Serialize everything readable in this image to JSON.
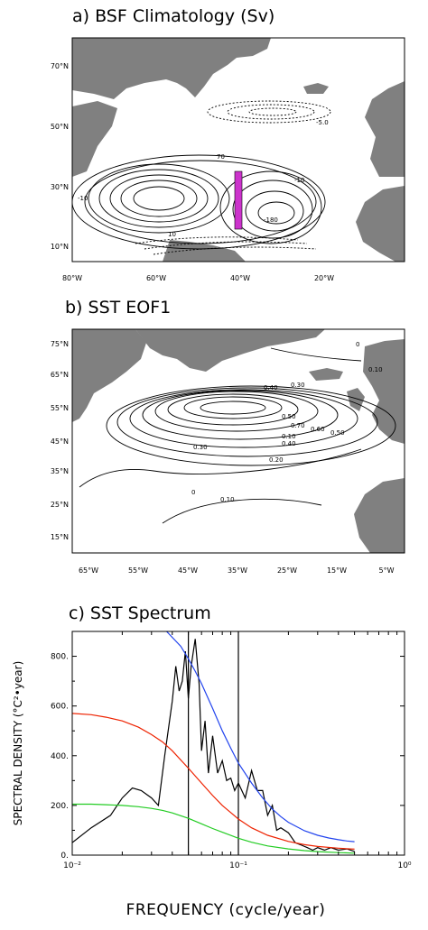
{
  "chart_data": [
    {
      "type": "contour-map",
      "title": "a) BSF Climatology (Sv)",
      "x_ticks": [
        "80°W",
        "60°W",
        "40°W",
        "20°W"
      ],
      "y_ticks": [
        "70°N",
        "50°N",
        "30°N",
        "10°N"
      ],
      "contour_labels": [
        "-5.0",
        "70",
        "-10",
        "-10",
        "10",
        "-180"
      ],
      "highlight_color": "#cc33cc"
    },
    {
      "type": "contour-map",
      "title": "b) SST EOF1",
      "x_ticks": [
        "65°W",
        "55°W",
        "45°W",
        "35°W",
        "25°W",
        "15°W",
        "5°W"
      ],
      "y_ticks": [
        "75°N",
        "65°N",
        "55°N",
        "45°N",
        "35°N",
        "25°N",
        "15°N"
      ],
      "contour_labels": [
        "0.10",
        "0.40",
        "0.30",
        "0.50",
        "0.70",
        "0.60",
        "0.50",
        "0.40",
        "0.30",
        "0.20",
        "0.10",
        "0",
        "0.10",
        "0"
      ]
    },
    {
      "type": "line",
      "title": "c) SST Spectrum",
      "xlabel": "FREQUENCY (cycle/year)",
      "ylabel": "SPECTRAL DENSITY (°C²•year)",
      "x_scale": "log",
      "xlim": [
        0.01,
        1
      ],
      "ylim": [
        0,
        900
      ],
      "x_ticks": [
        "10⁻²",
        "10⁻¹",
        "10⁰"
      ],
      "y_ticks": [
        "0.",
        "200.",
        "400.",
        "600.",
        "800."
      ],
      "vlines": [
        0.05,
        0.1
      ],
      "series": [
        {
          "color": "#000000",
          "x": [
            0.01,
            0.013,
            0.017,
            0.02,
            0.023,
            0.026,
            0.03,
            0.033,
            0.036,
            0.04,
            0.042,
            0.044,
            0.046,
            0.048,
            0.05,
            0.052,
            0.055,
            0.058,
            0.06,
            0.063,
            0.066,
            0.07,
            0.075,
            0.08,
            0.085,
            0.09,
            0.095,
            0.1,
            0.11,
            0.12,
            0.13,
            0.14,
            0.15,
            0.16,
            0.17,
            0.18,
            0.2,
            0.22,
            0.24,
            0.26,
            0.28,
            0.3,
            0.33,
            0.36,
            0.4,
            0.45,
            0.5
          ],
          "y": [
            50,
            110,
            160,
            230,
            270,
            260,
            230,
            200,
            400,
            620,
            760,
            660,
            700,
            820,
            630,
            760,
            870,
            690,
            420,
            540,
            330,
            480,
            330,
            380,
            300,
            310,
            260,
            290,
            230,
            340,
            260,
            260,
            160,
            200,
            100,
            110,
            90,
            50,
            40,
            30,
            20,
            30,
            20,
            30,
            20,
            25,
            15
          ]
        },
        {
          "color": "#2244ee",
          "x": [
            0.037,
            0.045,
            0.05,
            0.055,
            0.06,
            0.07,
            0.08,
            0.09,
            0.1,
            0.12,
            0.14,
            0.16,
            0.18,
            0.2,
            0.25,
            0.3,
            0.35,
            0.4,
            0.45,
            0.5
          ],
          "y": [
            900,
            840,
            790,
            740,
            690,
            590,
            500,
            430,
            370,
            290,
            230,
            185,
            155,
            132,
            98,
            80,
            69,
            62,
            57,
            54
          ]
        },
        {
          "color": "#ee2200",
          "x": [
            0.01,
            0.013,
            0.016,
            0.02,
            0.025,
            0.03,
            0.035,
            0.04,
            0.05,
            0.06,
            0.07,
            0.08,
            0.1,
            0.12,
            0.15,
            0.2,
            0.25,
            0.3,
            0.4,
            0.5
          ],
          "y": [
            570,
            565,
            555,
            540,
            515,
            485,
            455,
            420,
            350,
            290,
            240,
            200,
            145,
            110,
            80,
            55,
            42,
            35,
            28,
            24
          ]
        },
        {
          "color": "#22cc22",
          "x": [
            0.01,
            0.013,
            0.016,
            0.02,
            0.025,
            0.03,
            0.035,
            0.04,
            0.05,
            0.06,
            0.07,
            0.08,
            0.1,
            0.12,
            0.15,
            0.2,
            0.25,
            0.3,
            0.4,
            0.5
          ],
          "y": [
            205,
            205,
            203,
            200,
            195,
            188,
            180,
            170,
            148,
            126,
            107,
            92,
            68,
            52,
            37,
            25,
            18,
            14,
            10,
            8
          ]
        }
      ]
    }
  ]
}
